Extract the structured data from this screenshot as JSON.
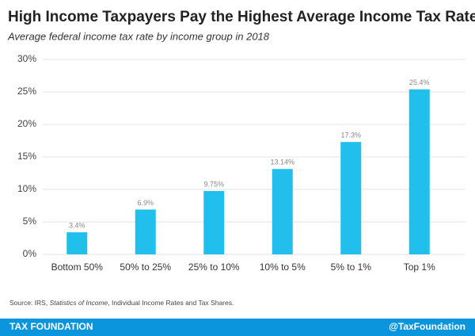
{
  "chart_data": {
    "type": "bar",
    "title": "High Income Taxpayers Pay the Highest Average Income Tax Rates",
    "subtitle": "Average federal income tax rate by income group in 2018",
    "categories": [
      "Bottom 50%",
      "50% to 25%",
      "25% to 10%",
      "10% to 5%",
      "5% to 1%",
      "Top 1%"
    ],
    "values": [
      3.4,
      6.9,
      9.75,
      13.14,
      17.3,
      25.4
    ],
    "value_labels": [
      "3.4%",
      "6.9%",
      "9.75%",
      "13.14%",
      "17.3%",
      "25.4%"
    ],
    "color": "#21bfec",
    "ylim": [
      0,
      30
    ],
    "yticks": [
      {
        "value": 0,
        "label": "0%"
      },
      {
        "value": 5,
        "label": "5%"
      },
      {
        "value": 10,
        "label": "10%"
      },
      {
        "value": 15,
        "label": "15%"
      },
      {
        "value": 20,
        "label": "20%"
      },
      {
        "value": 25,
        "label": "25%"
      },
      {
        "value": 30,
        "label": "30%"
      }
    ],
    "grid": true,
    "source": [
      "Source: IRS, ",
      "Statistics of Income",
      ", Individual Income Rates and Tax Shares."
    ]
  },
  "footer": {
    "left": "TAX FOUNDATION",
    "right": "@TaxFoundation"
  }
}
